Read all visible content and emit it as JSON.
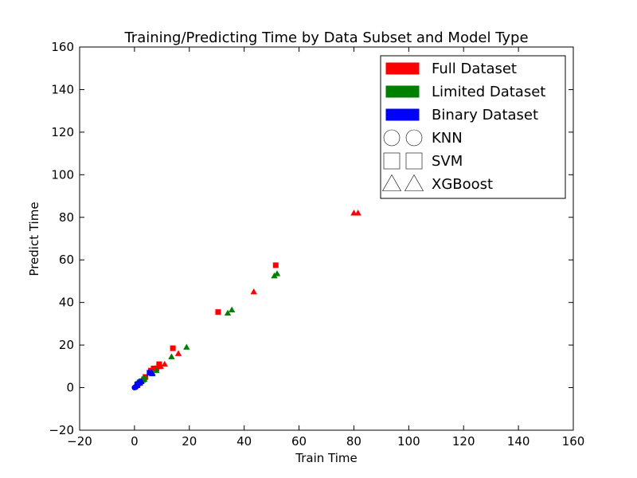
{
  "chart_data": {
    "type": "scatter",
    "title": "Training/Predicting Time by Data Subset and Model Type",
    "xlabel": "Train Time",
    "ylabel": "Predict Time",
    "xlim": [
      -20,
      160
    ],
    "ylim": [
      -20,
      160
    ],
    "xticks": [
      "−20",
      "0",
      "20",
      "40",
      "60",
      "80",
      "100",
      "120",
      "140",
      "160"
    ],
    "yticks": [
      "−20",
      "0",
      "20",
      "40",
      "60",
      "80",
      "100",
      "120",
      "140",
      "160"
    ],
    "grid": false,
    "legend_position": "top-right",
    "legend": [
      {
        "label": "Full Dataset",
        "kind": "patch",
        "color": "#ff0000"
      },
      {
        "label": "Limited Dataset",
        "kind": "patch",
        "color": "#008000"
      },
      {
        "label": "Binary Dataset",
        "kind": "patch",
        "color": "#0000ff"
      },
      {
        "label": "KNN",
        "kind": "marker",
        "marker": "circle"
      },
      {
        "label": "SVM",
        "kind": "marker",
        "marker": "square"
      },
      {
        "label": "XGBoost",
        "kind": "marker",
        "marker": "triangle"
      }
    ],
    "series": [
      {
        "dataset": "Full",
        "model": "SVM",
        "color": "#ff0000",
        "marker": "square",
        "points": [
          [
            51.5,
            57.5
          ],
          [
            30.5,
            35.5
          ],
          [
            14,
            18.5
          ],
          [
            9,
            11
          ],
          [
            9,
            10
          ],
          [
            8,
            9
          ],
          [
            7,
            9
          ],
          [
            6,
            8
          ],
          [
            4,
            5
          ],
          [
            2,
            2.5
          ]
        ]
      },
      {
        "dataset": "Full",
        "model": "XGBoost",
        "color": "#ff0000",
        "marker": "triangle",
        "points": [
          [
            80,
            82
          ],
          [
            81.5,
            82
          ],
          [
            43.5,
            45
          ],
          [
            16,
            16
          ],
          [
            11,
            11
          ],
          [
            9.5,
            10
          ],
          [
            7.5,
            9
          ],
          [
            5.5,
            7
          ],
          [
            3.5,
            4
          ],
          [
            2,
            2
          ]
        ]
      },
      {
        "dataset": "Full",
        "model": "KNN",
        "color": "#ff0000",
        "marker": "circle",
        "points": [
          [
            0.5,
            0.5
          ],
          [
            1,
            1
          ],
          [
            1.5,
            1.5
          ]
        ]
      },
      {
        "dataset": "Limited",
        "model": "XGBoost",
        "color": "#008000",
        "marker": "triangle",
        "points": [
          [
            51,
            52.5
          ],
          [
            52,
            53.5
          ],
          [
            34,
            35
          ],
          [
            35.5,
            36.5
          ],
          [
            19,
            19
          ],
          [
            13.5,
            14.5
          ],
          [
            8,
            8
          ],
          [
            6.5,
            7
          ],
          [
            3.5,
            4
          ],
          [
            3,
            3.5
          ],
          [
            1.5,
            2
          ]
        ]
      },
      {
        "dataset": "Limited",
        "model": "SVM",
        "color": "#008000",
        "marker": "square",
        "points": [
          [
            3.5,
            4
          ],
          [
            2.5,
            3
          ],
          [
            1.5,
            2
          ]
        ]
      },
      {
        "dataset": "Limited",
        "model": "KNN",
        "color": "#008000",
        "marker": "circle",
        "points": [
          [
            0.5,
            0.5
          ],
          [
            1,
            1
          ]
        ]
      },
      {
        "dataset": "Binary",
        "model": "SVM",
        "color": "#0000ff",
        "marker": "square",
        "points": [
          [
            5.5,
            7
          ],
          [
            2,
            2.5
          ],
          [
            1,
            1.5
          ]
        ]
      },
      {
        "dataset": "Binary",
        "model": "XGBoost",
        "color": "#0000ff",
        "marker": "triangle",
        "points": [
          [
            6.5,
            6.5
          ],
          [
            2.5,
            3
          ],
          [
            1,
            1
          ]
        ]
      },
      {
        "dataset": "Binary",
        "model": "KNN",
        "color": "#0000ff",
        "marker": "circle",
        "points": [
          [
            0,
            0
          ],
          [
            0.3,
            0.3
          ],
          [
            0.5,
            0.2
          ]
        ]
      }
    ]
  }
}
